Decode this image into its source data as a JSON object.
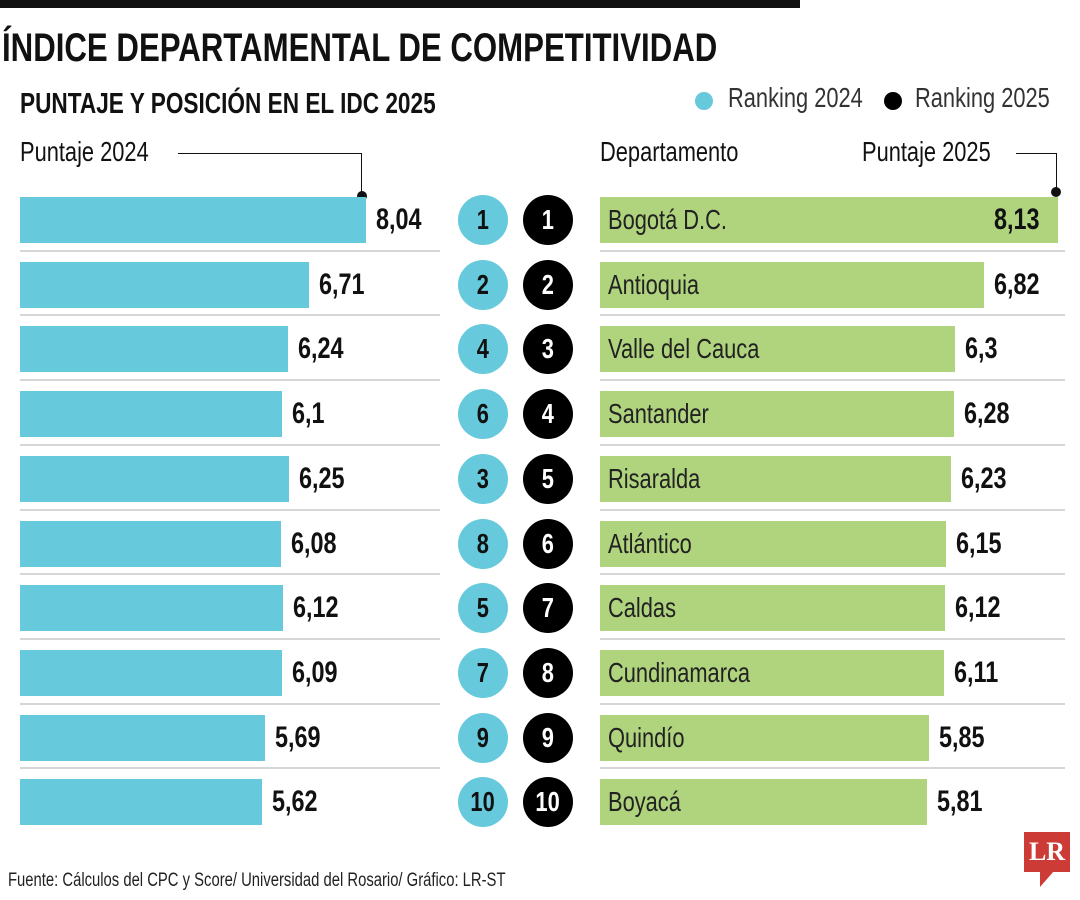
{
  "title": "ÍNDICE DEPARTAMENTAL DE COMPETITIVIDAD",
  "subtitle": "PUNTAJE Y POSICIÓN EN EL IDC 2025",
  "legend": [
    {
      "label": "Ranking 2024",
      "color": "#67c9dc"
    },
    {
      "label": "Ranking 2025",
      "color": "#000000"
    }
  ],
  "headers": {
    "left": "Puntaje 2024",
    "dept": "Departamento",
    "right": "Puntaje 2025"
  },
  "source": "Fuente: Cálculos del CPC y Score/ Universidad del Rosario/ Gráfico: LR-ST",
  "logo": "LR",
  "colors": {
    "bar2024": "#67c9dc",
    "bar2025": "#b0d47e",
    "rank2025": "#000000"
  },
  "chart_data": {
    "type": "bar",
    "categories": [
      "Bogotá D.C.",
      "Antioquia",
      "Valle del Cauca",
      "Santander",
      "Risaralda",
      "Atlántico",
      "Caldas",
      "Cundinamarca",
      "Quindío",
      "Boyacá"
    ],
    "series": [
      {
        "name": "Puntaje 2024",
        "values": [
          8.04,
          6.71,
          6.24,
          6.1,
          6.25,
          6.08,
          6.12,
          6.09,
          5.69,
          5.62
        ],
        "labels": [
          "8,04",
          "6,71",
          "6,24",
          "6,1",
          "6,25",
          "6,08",
          "6,12",
          "6,09",
          "5,69",
          "5,62"
        ]
      },
      {
        "name": "Puntaje 2025",
        "values": [
          8.13,
          6.82,
          6.3,
          6.28,
          6.23,
          6.15,
          6.12,
          6.11,
          5.85,
          5.81
        ],
        "labels": [
          "8,13",
          "6,82",
          "6,3",
          "6,28",
          "6,23",
          "6,15",
          "6,12",
          "6,11",
          "5,85",
          "5,81"
        ]
      }
    ],
    "ranking_2024": [
      1,
      2,
      4,
      6,
      3,
      8,
      5,
      7,
      9,
      10
    ],
    "ranking_2025": [
      1,
      2,
      3,
      4,
      5,
      6,
      7,
      8,
      9,
      10
    ]
  }
}
